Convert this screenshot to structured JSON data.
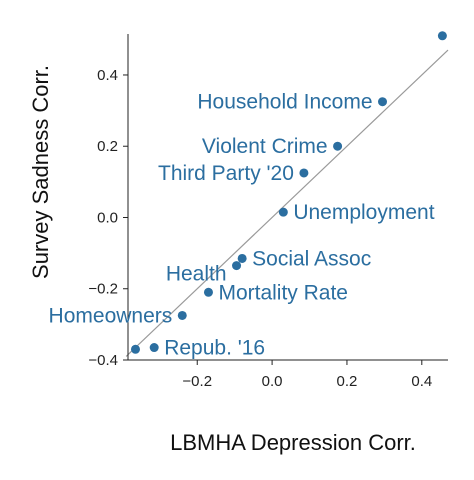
{
  "chart_data": {
    "type": "scatter",
    "xlabel": "LBMHA Depression Corr.",
    "ylabel": "Survey Sadness Corr.",
    "xlim": [
      -0.385,
      0.47
    ],
    "ylim": [
      -0.4,
      0.515
    ],
    "xticks": [
      -0.2,
      0.0,
      0.2,
      0.4
    ],
    "yticks": [
      -0.4,
      -0.2,
      0.0,
      0.2,
      0.4
    ],
    "xtick_labels": [
      "−0.2",
      "0.0",
      "0.2",
      "0.4"
    ],
    "ytick_labels": [
      "−0.4",
      "−0.2",
      "0.0",
      "0.2",
      "0.4"
    ],
    "grid": false,
    "reference_line": "y = x",
    "colors": {
      "points": "#2b6ea0",
      "labels": "#2b6ea0",
      "reference_line": "#9a9a9a",
      "axis": "#222222"
    },
    "points": [
      {
        "label": "",
        "x": 0.455,
        "y": 0.51
      },
      {
        "label": "Household Income",
        "x": 0.295,
        "y": 0.325
      },
      {
        "label": "Violent Crime",
        "x": 0.175,
        "y": 0.2
      },
      {
        "label": "Third Party '20",
        "x": 0.085,
        "y": 0.125
      },
      {
        "label": "Unemployment",
        "x": 0.03,
        "y": 0.015
      },
      {
        "label": "Social Assoc",
        "x": -0.08,
        "y": -0.115
      },
      {
        "label": "Health",
        "x": -0.095,
        "y": -0.135
      },
      {
        "label": "Mortality Rate",
        "x": -0.17,
        "y": -0.21
      },
      {
        "label": "Homeowners",
        "x": -0.24,
        "y": -0.275
      },
      {
        "label": "Repub. '16",
        "x": -0.315,
        "y": -0.365
      },
      {
        "label": "",
        "x": -0.365,
        "y": -0.37
      }
    ]
  }
}
